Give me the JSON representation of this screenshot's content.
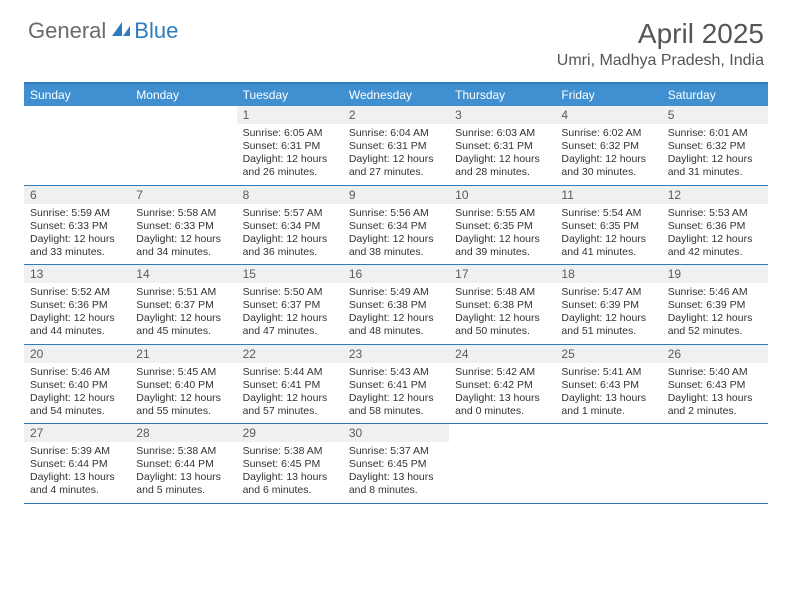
{
  "brand": {
    "part1": "General",
    "part2": "Blue"
  },
  "title": "April 2025",
  "location": "Umri, Madhya Pradesh, India",
  "colors": {
    "header_bar": "#3f8fd1",
    "rule": "#2f7bbf",
    "daynum_bg": "#eef0f2",
    "text": "#333333",
    "muted": "#6a6a6a",
    "brand_blue": "#2f7bbf",
    "background": "#ffffff"
  },
  "dow": [
    "Sunday",
    "Monday",
    "Tuesday",
    "Wednesday",
    "Thursday",
    "Friday",
    "Saturday"
  ],
  "weeks": [
    [
      null,
      null,
      {
        "n": "1",
        "sr": "6:05 AM",
        "ss": "6:31 PM",
        "dl": "12 hours and 26 minutes."
      },
      {
        "n": "2",
        "sr": "6:04 AM",
        "ss": "6:31 PM",
        "dl": "12 hours and 27 minutes."
      },
      {
        "n": "3",
        "sr": "6:03 AM",
        "ss": "6:31 PM",
        "dl": "12 hours and 28 minutes."
      },
      {
        "n": "4",
        "sr": "6:02 AM",
        "ss": "6:32 PM",
        "dl": "12 hours and 30 minutes."
      },
      {
        "n": "5",
        "sr": "6:01 AM",
        "ss": "6:32 PM",
        "dl": "12 hours and 31 minutes."
      }
    ],
    [
      {
        "n": "6",
        "sr": "5:59 AM",
        "ss": "6:33 PM",
        "dl": "12 hours and 33 minutes."
      },
      {
        "n": "7",
        "sr": "5:58 AM",
        "ss": "6:33 PM",
        "dl": "12 hours and 34 minutes."
      },
      {
        "n": "8",
        "sr": "5:57 AM",
        "ss": "6:34 PM",
        "dl": "12 hours and 36 minutes."
      },
      {
        "n": "9",
        "sr": "5:56 AM",
        "ss": "6:34 PM",
        "dl": "12 hours and 38 minutes."
      },
      {
        "n": "10",
        "sr": "5:55 AM",
        "ss": "6:35 PM",
        "dl": "12 hours and 39 minutes."
      },
      {
        "n": "11",
        "sr": "5:54 AM",
        "ss": "6:35 PM",
        "dl": "12 hours and 41 minutes."
      },
      {
        "n": "12",
        "sr": "5:53 AM",
        "ss": "6:36 PM",
        "dl": "12 hours and 42 minutes."
      }
    ],
    [
      {
        "n": "13",
        "sr": "5:52 AM",
        "ss": "6:36 PM",
        "dl": "12 hours and 44 minutes."
      },
      {
        "n": "14",
        "sr": "5:51 AM",
        "ss": "6:37 PM",
        "dl": "12 hours and 45 minutes."
      },
      {
        "n": "15",
        "sr": "5:50 AM",
        "ss": "6:37 PM",
        "dl": "12 hours and 47 minutes."
      },
      {
        "n": "16",
        "sr": "5:49 AM",
        "ss": "6:38 PM",
        "dl": "12 hours and 48 minutes."
      },
      {
        "n": "17",
        "sr": "5:48 AM",
        "ss": "6:38 PM",
        "dl": "12 hours and 50 minutes."
      },
      {
        "n": "18",
        "sr": "5:47 AM",
        "ss": "6:39 PM",
        "dl": "12 hours and 51 minutes."
      },
      {
        "n": "19",
        "sr": "5:46 AM",
        "ss": "6:39 PM",
        "dl": "12 hours and 52 minutes."
      }
    ],
    [
      {
        "n": "20",
        "sr": "5:46 AM",
        "ss": "6:40 PM",
        "dl": "12 hours and 54 minutes."
      },
      {
        "n": "21",
        "sr": "5:45 AM",
        "ss": "6:40 PM",
        "dl": "12 hours and 55 minutes."
      },
      {
        "n": "22",
        "sr": "5:44 AM",
        "ss": "6:41 PM",
        "dl": "12 hours and 57 minutes."
      },
      {
        "n": "23",
        "sr": "5:43 AM",
        "ss": "6:41 PM",
        "dl": "12 hours and 58 minutes."
      },
      {
        "n": "24",
        "sr": "5:42 AM",
        "ss": "6:42 PM",
        "dl": "13 hours and 0 minutes."
      },
      {
        "n": "25",
        "sr": "5:41 AM",
        "ss": "6:43 PM",
        "dl": "13 hours and 1 minute."
      },
      {
        "n": "26",
        "sr": "5:40 AM",
        "ss": "6:43 PM",
        "dl": "13 hours and 2 minutes."
      }
    ],
    [
      {
        "n": "27",
        "sr": "5:39 AM",
        "ss": "6:44 PM",
        "dl": "13 hours and 4 minutes."
      },
      {
        "n": "28",
        "sr": "5:38 AM",
        "ss": "6:44 PM",
        "dl": "13 hours and 5 minutes."
      },
      {
        "n": "29",
        "sr": "5:38 AM",
        "ss": "6:45 PM",
        "dl": "13 hours and 6 minutes."
      },
      {
        "n": "30",
        "sr": "5:37 AM",
        "ss": "6:45 PM",
        "dl": "13 hours and 8 minutes."
      },
      null,
      null,
      null
    ]
  ],
  "labels": {
    "sunrise": "Sunrise:",
    "sunset": "Sunset:",
    "daylight": "Daylight:"
  }
}
